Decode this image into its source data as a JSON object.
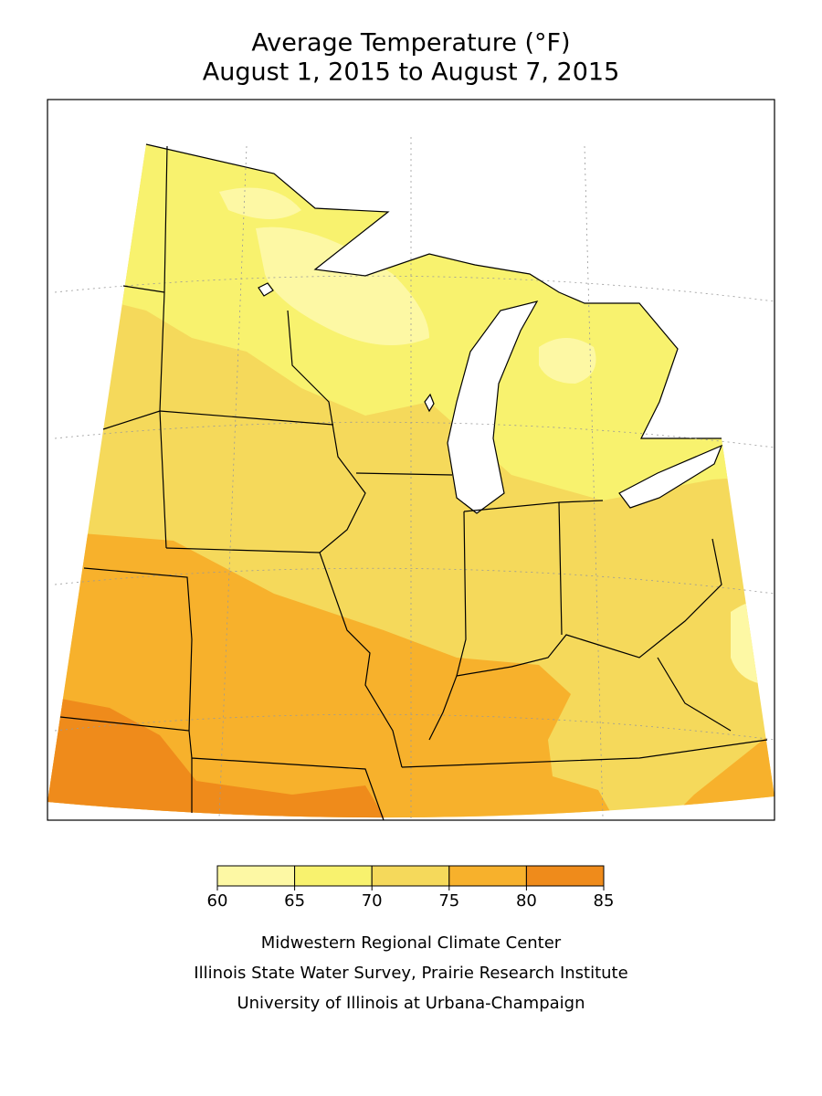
{
  "title": "Average Temperature (°F)",
  "subtitle": "August 1, 2015 to August 7, 2015",
  "legend": {
    "bins": [
      60,
      65,
      70,
      75,
      80,
      85
    ],
    "colors": [
      "#fdf8a4",
      "#f8f26e",
      "#f5d95b",
      "#f7b12c",
      "#ef8b1b"
    ]
  },
  "credits": [
    "Midwestern Regional Climate Center",
    "Illinois State Water Survey, Prairie Research Institute",
    "University of Illinois at Urbana-Champaign"
  ]
}
